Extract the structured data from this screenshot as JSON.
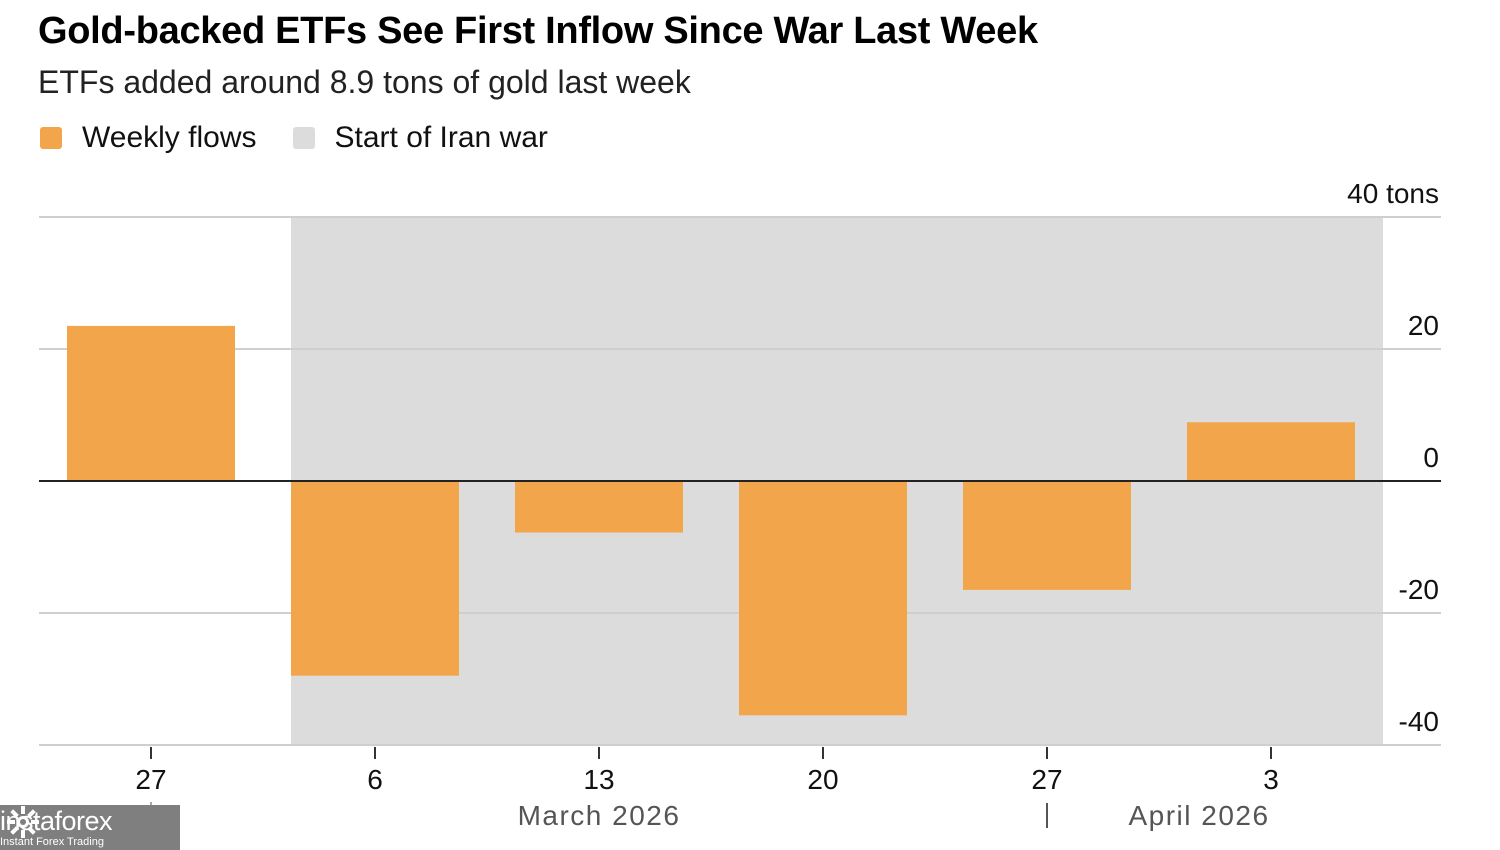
{
  "title": "Gold-backed ETFs See First Inflow Since War Last Week",
  "subtitle": "ETFs added around 8.9 tons of gold last week",
  "legend": {
    "weekly_flows": "Weekly flows",
    "iran_war": "Start of Iran war"
  },
  "colors": {
    "bar": "#F2A54A",
    "shade": "#DCDCDC",
    "grid": "#CFCFCF",
    "zero": "#222222"
  },
  "watermark": {
    "brand": "instaforex",
    "tagline": "Instant Forex Trading"
  },
  "chart_data": {
    "type": "bar",
    "title": "Gold-backed ETFs See First Inflow Since War Last Week",
    "subtitle": "ETFs added around 8.9 tons of gold last week",
    "unit": "tons",
    "categories": [
      "27",
      "6",
      "13",
      "20",
      "27",
      "3"
    ],
    "series": [
      {
        "name": "Weekly flows",
        "values": [
          23.5,
          -29.5,
          -7.8,
          -35.5,
          -16.5,
          8.9
        ]
      }
    ],
    "shaded_region": {
      "name": "Start of Iran war",
      "from_index": 1,
      "to_index": 5
    },
    "month_labels": [
      {
        "label": "March 2026",
        "under_index": 2
      },
      {
        "label": "April 2026",
        "under_index": 5
      }
    ],
    "y_ticks": [
      {
        "value": 40,
        "label": "40 tons"
      },
      {
        "value": 20,
        "label": "20"
      },
      {
        "value": 0,
        "label": "0"
      },
      {
        "value": -20,
        "label": "-20"
      },
      {
        "value": -40,
        "label": "-40"
      }
    ],
    "ylim": [
      -40,
      40
    ],
    "grid": true,
    "legend_position": "top-left"
  }
}
